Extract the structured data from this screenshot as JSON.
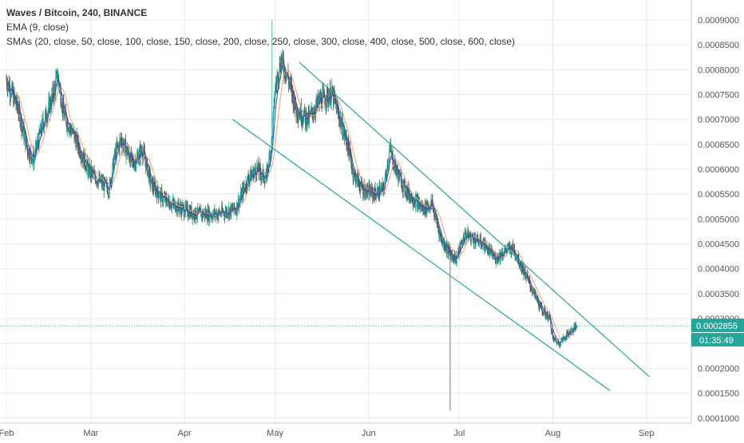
{
  "legend": {
    "title": "Waves / Bitcoin, 240, BINANCE",
    "ema": "EMA (9, close)",
    "sma": "SMAs (20, close, 50, close, 100, close, 150, close, 200, close, 250, close, 300, close, 400, close, 500, close, 600, close)"
  },
  "price_tag": {
    "price": "0.0002855",
    "countdown": "01:35:49",
    "color": "#26a69a"
  },
  "colors": {
    "up": "#26a69a",
    "down": "#555555",
    "ema": "#3f51b5",
    "sma": "#f4a261",
    "channel": "#26a69a",
    "grid": "#e8eaed",
    "axis_text": "#555555",
    "dotted": "#26a69a"
  },
  "chart_data": {
    "type": "candlestick",
    "ylim": [
      9e-05,
      0.00094
    ],
    "y_ticks": [
      "0.0001000",
      "0.0001500",
      "0.0002000",
      "0.0002500",
      "0.0003000",
      "0.0003500",
      "0.0004000",
      "0.0004500",
      "0.0005000",
      "0.0005500",
      "0.0006000",
      "0.0006500",
      "0.0007000",
      "0.0007500",
      "0.0008000",
      "0.0008500",
      "0.0009000"
    ],
    "x_ticks": [
      "Feb",
      "Mar",
      "Apr",
      "May",
      "Jun",
      "Jul",
      "Aug",
      "Sep"
    ],
    "x_tick_dates": [
      "2018-02-01",
      "2018-03-01",
      "2018-04-01",
      "2018-05-01",
      "2018-06-01",
      "2018-07-01",
      "2018-08-01",
      "2018-09-01"
    ],
    "xlim": [
      "2018-02-01",
      "2018-09-18"
    ],
    "last_price": 0.0002855,
    "price_path": [
      [
        "2018-02-01",
        0.00078
      ],
      [
        "2018-02-05",
        0.00072
      ],
      [
        "2018-02-08",
        0.00064
      ],
      [
        "2018-02-10",
        0.00062
      ],
      [
        "2018-02-13",
        0.00069
      ],
      [
        "2018-02-16",
        0.00074
      ],
      [
        "2018-02-18",
        0.00079
      ],
      [
        "2018-02-20",
        0.00071
      ],
      [
        "2018-02-24",
        0.00066
      ],
      [
        "2018-02-28",
        0.0006
      ],
      [
        "2018-03-03",
        0.00058
      ],
      [
        "2018-03-07",
        0.00056
      ],
      [
        "2018-03-09",
        0.00063
      ],
      [
        "2018-03-11",
        0.00066
      ],
      [
        "2018-03-15",
        0.00061
      ],
      [
        "2018-03-18",
        0.00064
      ],
      [
        "2018-03-21",
        0.00057
      ],
      [
        "2018-03-25",
        0.00054
      ],
      [
        "2018-03-31",
        0.00052
      ],
      [
        "2018-04-05",
        0.00051
      ],
      [
        "2018-04-12",
        0.00051
      ],
      [
        "2018-04-18",
        0.00052
      ],
      [
        "2018-04-22",
        0.00058
      ],
      [
        "2018-04-25",
        0.0006
      ],
      [
        "2018-04-28",
        0.00058
      ],
      [
        "2018-04-30",
        0.00066
      ],
      [
        "2018-05-01",
        0.00076
      ],
      [
        "2018-05-03",
        0.00082
      ],
      [
        "2018-05-05",
        0.00079
      ],
      [
        "2018-05-08",
        0.00072
      ],
      [
        "2018-05-12",
        0.0007
      ],
      [
        "2018-05-16",
        0.00074
      ],
      [
        "2018-05-20",
        0.00075
      ],
      [
        "2018-05-23",
        0.00069
      ],
      [
        "2018-05-25",
        0.00065
      ],
      [
        "2018-05-27",
        0.00059
      ],
      [
        "2018-05-30",
        0.00056
      ],
      [
        "2018-06-03",
        0.00055
      ],
      [
        "2018-06-06",
        0.00056
      ],
      [
        "2018-06-08",
        0.00064
      ],
      [
        "2018-06-10",
        0.0006
      ],
      [
        "2018-06-13",
        0.00056
      ],
      [
        "2018-06-16",
        0.00054
      ],
      [
        "2018-06-19",
        0.00052
      ],
      [
        "2018-06-22",
        0.00053
      ],
      [
        "2018-06-25",
        0.00046
      ],
      [
        "2018-06-28",
        0.00043
      ],
      [
        "2018-06-30",
        0.00042
      ],
      [
        "2018-07-03",
        0.00047
      ],
      [
        "2018-07-06",
        0.00046
      ],
      [
        "2018-07-09",
        0.00045
      ],
      [
        "2018-07-13",
        0.00042
      ],
      [
        "2018-07-17",
        0.00044
      ],
      [
        "2018-07-19",
        0.00044
      ],
      [
        "2018-07-22",
        0.0004
      ],
      [
        "2018-07-25",
        0.00036
      ],
      [
        "2018-07-28",
        0.00032
      ],
      [
        "2018-07-31",
        0.0003
      ],
      [
        "2018-08-01",
        0.00026
      ],
      [
        "2018-08-03",
        0.00025
      ],
      [
        "2018-08-06",
        0.00027
      ],
      [
        "2018-08-09",
        0.000285
      ]
    ],
    "spikes": [
      {
        "date": "2018-04-30",
        "high": 0.0009,
        "low": 0.00065
      },
      {
        "date": "2018-06-28",
        "high": 0.00045,
        "low": 0.000115
      }
    ],
    "channel_lines": [
      {
        "from": [
          "2018-05-09",
          0.000815
        ],
        "to": [
          "2018-09-02",
          0.000183
        ]
      },
      {
        "from": [
          "2018-04-17",
          0.0007
        ],
        "to": [
          "2018-08-20",
          0.000155
        ]
      }
    ]
  }
}
